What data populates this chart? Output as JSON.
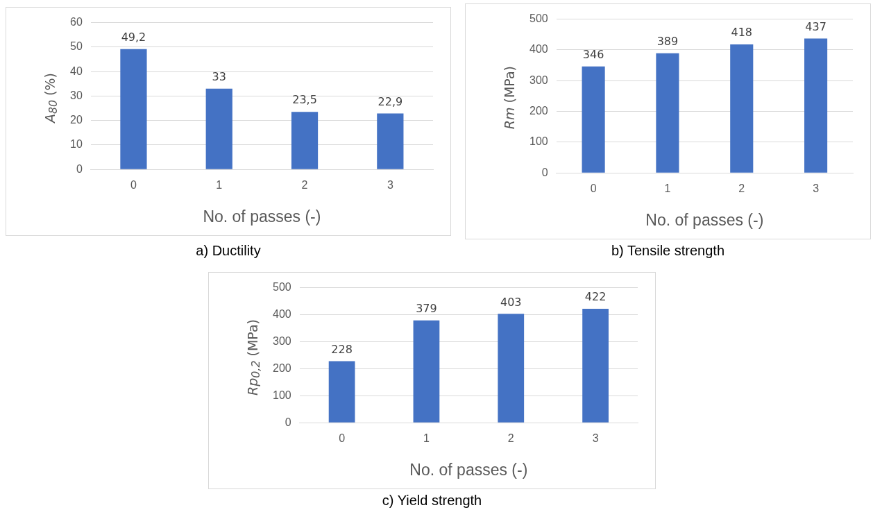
{
  "chart_data": [
    {
      "type": "bar",
      "categories": [
        "0",
        "1",
        "2",
        "3"
      ],
      "values": [
        49.2,
        33,
        23.5,
        22.9
      ],
      "value_labels": [
        "49,2",
        "33",
        "23,5",
        "22,9"
      ],
      "color": "#4472c4",
      "ylim": [
        0,
        60
      ],
      "yticks": [
        0,
        10,
        20,
        30,
        40,
        50,
        60
      ],
      "grid": "y",
      "xlabel": "No. of passes (-)",
      "ylabel": "A$_{80}$ (%)",
      "annotations": [
        "a) Ductility"
      ]
    },
    {
      "type": "bar",
      "categories": [
        "0",
        "1",
        "2",
        "3"
      ],
      "values": [
        346,
        389,
        418,
        437
      ],
      "value_labels": [
        "346",
        "389",
        "418",
        "437"
      ],
      "color": "#4472c4",
      "ylim": [
        0,
        500
      ],
      "yticks": [
        0,
        100,
        200,
        300,
        400,
        500
      ],
      "grid": "y",
      "xlabel": "No. of passes (-)",
      "ylabel": "Rm (MPa)",
      "annotations": [
        "b) Tensile strength"
      ]
    },
    {
      "type": "bar",
      "categories": [
        "0",
        "1",
        "2",
        "3"
      ],
      "values": [
        228,
        379,
        403,
        422
      ],
      "value_labels": [
        "228",
        "379",
        "403",
        "422"
      ],
      "color": "#4472c4",
      "ylim": [
        0,
        500
      ],
      "yticks": [
        0,
        100,
        200,
        300,
        400,
        500
      ],
      "grid": "y",
      "xlabel": "No. of passes (-)",
      "ylabel": "Rp$_{0,2}$ (MPa)",
      "annotations": [
        "c) Yield strength"
      ]
    }
  ]
}
